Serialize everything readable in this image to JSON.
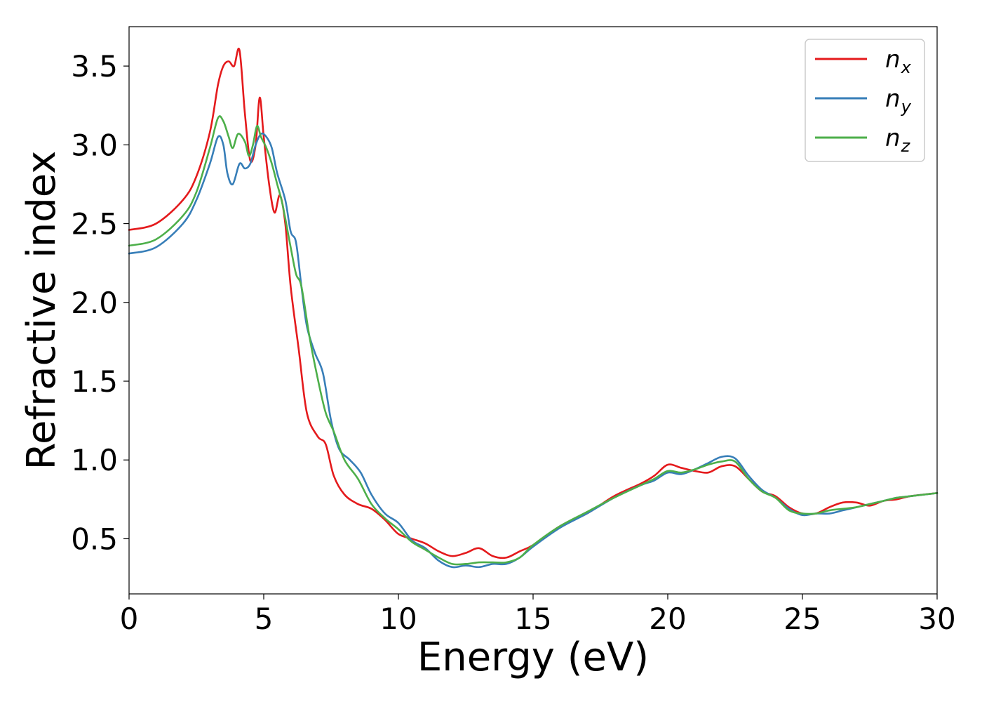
{
  "chart_data": {
    "type": "line",
    "title": "",
    "xlabel": "Energy (eV)",
    "ylabel": "Refractive index",
    "xlim": [
      0,
      30
    ],
    "ylim": [
      0.15,
      3.75
    ],
    "xticks": [
      0,
      5,
      10,
      15,
      20,
      25,
      30
    ],
    "xtick_labels": [
      "0",
      "5",
      "10",
      "15",
      "20",
      "25",
      "30"
    ],
    "yticks": [
      0.5,
      1.0,
      1.5,
      2.0,
      2.5,
      3.0,
      3.5
    ],
    "ytick_labels": [
      "0.5",
      "1.0",
      "1.5",
      "2.0",
      "2.5",
      "3.0",
      "3.5"
    ],
    "grid": false,
    "legend_position": "top-right",
    "series": [
      {
        "name": "n_x",
        "label_main": "n",
        "label_sub": "x",
        "color": "#e41a1c",
        "x": [
          0,
          1,
          2,
          2.5,
          3,
          3.3,
          3.5,
          3.7,
          3.9,
          4.1,
          4.3,
          4.5,
          4.7,
          4.85,
          5,
          5.2,
          5.4,
          5.6,
          5.8,
          6,
          6.3,
          6.6,
          7,
          7.3,
          7.6,
          8,
          8.5,
          9,
          9.5,
          10,
          10.5,
          11,
          11.5,
          12,
          12.5,
          13,
          13.5,
          14,
          14.5,
          15,
          16,
          17,
          18,
          19,
          19.5,
          20,
          20.5,
          21,
          21.5,
          22,
          22.5,
          23,
          23.5,
          24,
          24.5,
          25,
          25.5,
          26,
          26.5,
          27,
          27.5,
          28,
          28.5,
          29,
          30
        ],
        "y": [
          2.46,
          2.5,
          2.65,
          2.8,
          3.08,
          3.38,
          3.5,
          3.53,
          3.5,
          3.6,
          3.2,
          2.9,
          3.0,
          3.3,
          3.05,
          2.75,
          2.57,
          2.68,
          2.5,
          2.1,
          1.7,
          1.3,
          1.15,
          1.1,
          0.9,
          0.78,
          0.72,
          0.69,
          0.62,
          0.53,
          0.5,
          0.47,
          0.42,
          0.39,
          0.41,
          0.44,
          0.39,
          0.38,
          0.42,
          0.46,
          0.58,
          0.66,
          0.77,
          0.85,
          0.9,
          0.97,
          0.95,
          0.93,
          0.92,
          0.96,
          0.96,
          0.88,
          0.8,
          0.77,
          0.7,
          0.66,
          0.66,
          0.7,
          0.73,
          0.73,
          0.71,
          0.74,
          0.75,
          0.77,
          0.79
        ]
      },
      {
        "name": "n_y",
        "label_main": "n",
        "label_sub": "y",
        "color": "#377eb8",
        "x": [
          0,
          1,
          2,
          2.5,
          3,
          3.3,
          3.5,
          3.65,
          3.85,
          4.1,
          4.3,
          4.5,
          4.7,
          4.9,
          5.1,
          5.3,
          5.5,
          5.8,
          6,
          6.2,
          6.4,
          6.6,
          6.9,
          7.2,
          7.5,
          7.8,
          8.2,
          8.6,
          9,
          9.5,
          10,
          10.5,
          11,
          11.5,
          12,
          12.5,
          13,
          13.5,
          14,
          14.5,
          15,
          16,
          17,
          18,
          19,
          19.5,
          20,
          20.5,
          21,
          21.5,
          22,
          22.5,
          23,
          23.5,
          24,
          24.5,
          25,
          25.5,
          26,
          26.5,
          27,
          27.5,
          28,
          28.5,
          29,
          30
        ],
        "y": [
          2.31,
          2.35,
          2.5,
          2.65,
          2.88,
          3.05,
          3.0,
          2.82,
          2.75,
          2.88,
          2.85,
          2.88,
          3.0,
          3.07,
          3.05,
          2.98,
          2.82,
          2.65,
          2.45,
          2.38,
          2.1,
          1.85,
          1.68,
          1.55,
          1.25,
          1.07,
          1.0,
          0.92,
          0.78,
          0.66,
          0.6,
          0.49,
          0.44,
          0.36,
          0.32,
          0.33,
          0.32,
          0.34,
          0.34,
          0.38,
          0.45,
          0.57,
          0.66,
          0.76,
          0.84,
          0.87,
          0.92,
          0.91,
          0.94,
          0.98,
          1.02,
          1.01,
          0.9,
          0.81,
          0.76,
          0.69,
          0.65,
          0.66,
          0.66,
          0.68,
          0.7,
          0.72,
          0.74,
          0.76,
          0.77,
          0.79
        ]
      },
      {
        "name": "n_z",
        "label_main": "n",
        "label_sub": "z",
        "color": "#4daf4a",
        "x": [
          0,
          1,
          2,
          2.5,
          3,
          3.3,
          3.5,
          3.7,
          3.85,
          4.05,
          4.3,
          4.45,
          4.6,
          4.75,
          4.9,
          5.1,
          5.3,
          5.5,
          5.7,
          6,
          6.2,
          6.4,
          6.7,
          7,
          7.3,
          7.6,
          8,
          8.5,
          9,
          9.5,
          10,
          10.5,
          11,
          11.5,
          12,
          12.5,
          13,
          13.5,
          14,
          14.5,
          15,
          16,
          17,
          18,
          19,
          19.5,
          20,
          20.5,
          21,
          21.5,
          22,
          22.5,
          23,
          23.5,
          24,
          24.5,
          25,
          25.5,
          26,
          26.5,
          27,
          27.5,
          28,
          28.5,
          29,
          30
        ],
        "y": [
          2.36,
          2.4,
          2.55,
          2.7,
          2.98,
          3.17,
          3.15,
          3.05,
          2.98,
          3.07,
          3.02,
          2.93,
          3.0,
          3.12,
          3.05,
          2.98,
          2.88,
          2.75,
          2.62,
          2.35,
          2.18,
          2.1,
          1.78,
          1.52,
          1.3,
          1.18,
          1.0,
          0.88,
          0.72,
          0.63,
          0.56,
          0.48,
          0.43,
          0.38,
          0.34,
          0.34,
          0.35,
          0.35,
          0.35,
          0.38,
          0.46,
          0.58,
          0.67,
          0.76,
          0.84,
          0.88,
          0.93,
          0.92,
          0.94,
          0.97,
          0.99,
          0.99,
          0.88,
          0.8,
          0.76,
          0.68,
          0.66,
          0.66,
          0.68,
          0.69,
          0.7,
          0.72,
          0.74,
          0.76,
          0.77,
          0.79
        ]
      }
    ]
  }
}
